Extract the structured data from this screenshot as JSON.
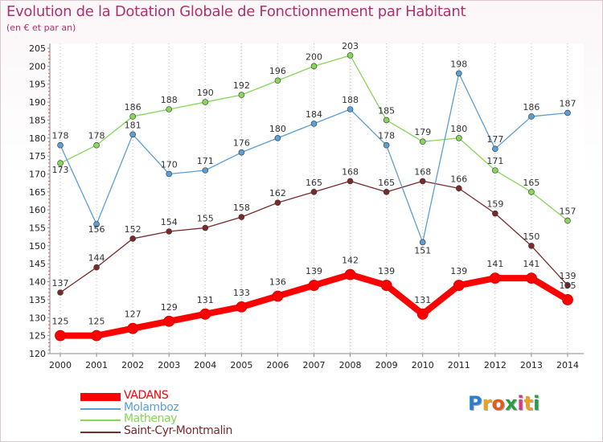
{
  "header": {
    "title": "Evolution de la Dotation Globale de Fonctionnement par Habitant",
    "subtitle": "(en € et par an)"
  },
  "logo": {
    "letters": [
      "P",
      "r",
      "o",
      "x",
      "i",
      "t",
      "i"
    ],
    "colors": [
      "#2a7fd0",
      "#e9a21b",
      "#e25b1c",
      "#2a9e3f",
      "#d03c8a",
      "#e9a21b",
      "#2a9e3f"
    ]
  },
  "chart_data": {
    "type": "line",
    "x": [
      "2000",
      "2001",
      "2002",
      "2003",
      "2004",
      "2005",
      "2006",
      "2007",
      "2008",
      "2009",
      "2010",
      "2011",
      "2012",
      "2013",
      "2014"
    ],
    "ylim": [
      120,
      205
    ],
    "yticks": [
      120,
      125,
      130,
      135,
      140,
      145,
      150,
      155,
      160,
      165,
      170,
      175,
      180,
      185,
      190,
      195,
      200,
      205
    ],
    "grid": "vertical-dotted",
    "legend_position": "bottom-left",
    "series": [
      {
        "name": "VADANS",
        "color": "#ff0000",
        "values": [
          125,
          125,
          127,
          129,
          131,
          133,
          136,
          139,
          142,
          139,
          131,
          139,
          141,
          141,
          135
        ]
      },
      {
        "name": "Molamboz",
        "color": "#5a9fd6",
        "values": [
          178,
          156,
          181,
          170,
          171,
          176,
          180,
          184,
          188,
          178,
          151,
          198,
          177,
          186,
          187
        ]
      },
      {
        "name": "Mathenay",
        "color": "#86d65a",
        "values": [
          173,
          178,
          186,
          188,
          190,
          192,
          196,
          200,
          203,
          185,
          179,
          180,
          171,
          165,
          157
        ]
      },
      {
        "name": "Saint-Cyr-Montmalin",
        "color": "#7a2a2a",
        "values": [
          137,
          144,
          152,
          154,
          155,
          158,
          162,
          165,
          168,
          165,
          168,
          166,
          159,
          150,
          139
        ]
      }
    ]
  }
}
